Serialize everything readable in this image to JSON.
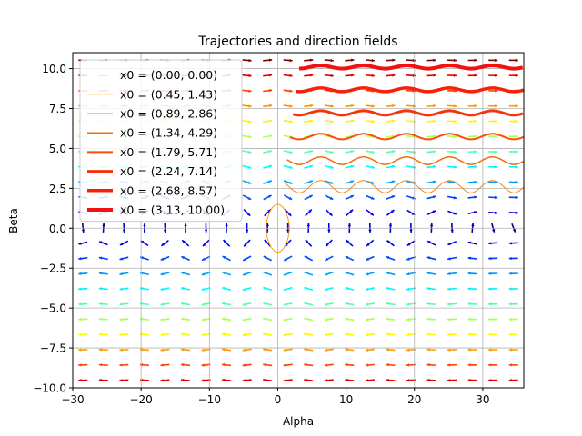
{
  "chart_data": {
    "type": "line",
    "title": "Trajectories and direction fields",
    "xlabel": "Alpha",
    "ylabel": "Beta",
    "xlim": [
      -30,
      36
    ],
    "ylim": [
      -10,
      11
    ],
    "grid": true,
    "legend_position": "top-left",
    "x_ticks": [
      -30,
      -20,
      -10,
      0,
      10,
      20,
      30
    ],
    "x_tick_labels": [
      "−30",
      "−20",
      "−10",
      "0",
      "10",
      "20",
      "30"
    ],
    "y_ticks": [
      -10,
      -7.5,
      -5,
      -2.5,
      0,
      2.5,
      5,
      7.5,
      10
    ],
    "y_tick_labels": [
      "−10.0",
      "−7.5",
      "−5.0",
      "−2.5",
      "0.0",
      "2.5",
      "5.0",
      "7.5",
      "10.0"
    ],
    "series": [
      {
        "name": "x0 = (0.00, 0.00)",
        "x0": [
          0.0,
          0.0
        ],
        "color": "#ffffff",
        "width": 1
      },
      {
        "name": "x0 = (0.45, 1.43)",
        "x0": [
          0.45,
          1.43
        ],
        "color": "#fba50d",
        "width": 1
      },
      {
        "name": "x0 = (0.89, 2.86)",
        "x0": [
          0.89,
          2.86
        ],
        "color": "#f78615",
        "width": 1
      },
      {
        "name": "x0 = (1.34, 4.29)",
        "x0": [
          1.34,
          4.29
        ],
        "color": "#f56d0c",
        "width": 1.5
      },
      {
        "name": "x0 = (1.79, 5.71)",
        "x0": [
          1.79,
          5.71
        ],
        "color": "#f6500b",
        "width": 2
      },
      {
        "name": "x0 = (2.24, 7.14)",
        "x0": [
          2.24,
          7.14
        ],
        "color": "#f53509",
        "width": 3
      },
      {
        "name": "x0 = (2.68, 8.57)",
        "x0": [
          2.68,
          8.57
        ],
        "color": "#f72109",
        "width": 3.5
      },
      {
        "name": "x0 = (3.13, 10.00)",
        "x0": [
          3.13,
          10.0
        ],
        "color": "#f31010",
        "width": 4
      }
    ],
    "direction_field": {
      "colormap": "jet",
      "x_range": [
        -30,
        36
      ],
      "y_range": [
        -10,
        11
      ],
      "grid_size": [
        22,
        22
      ]
    }
  }
}
